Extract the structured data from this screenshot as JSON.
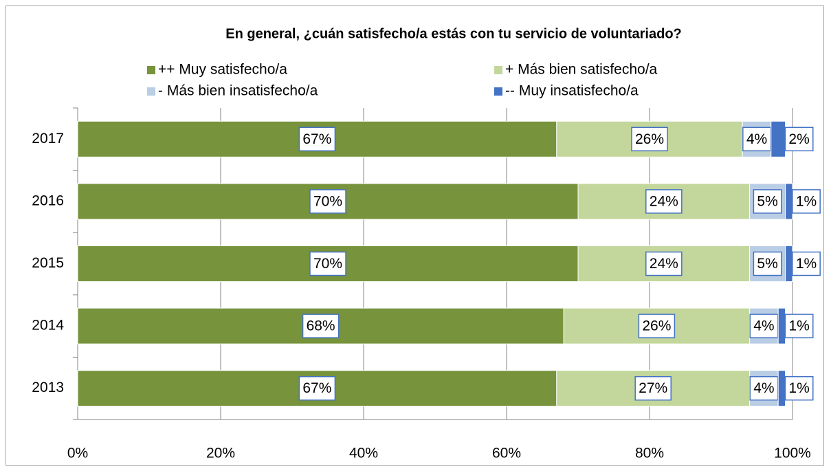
{
  "chart_data": {
    "type": "stacked-barh",
    "title": "En general, ¿cuán satisfecho/a estás con tu servicio de voluntariado?",
    "categories": [
      "2017",
      "2016",
      "2015",
      "2014",
      "2013"
    ],
    "series": [
      {
        "name": "++ Muy satisfecho/a",
        "color": "#77933c",
        "values": [
          67,
          70,
          70,
          68,
          67
        ],
        "value_labels": [
          "67%",
          "70%",
          "70%",
          "68%",
          "67%"
        ]
      },
      {
        "name": "+ Más bien satisfecho/a",
        "color": "#c3d69b",
        "values": [
          26,
          24,
          24,
          26,
          27
        ],
        "value_labels": [
          "26%",
          "24%",
          "24%",
          "26%",
          "27%"
        ]
      },
      {
        "name": "- Más bien insatisfecho/a",
        "color": "#b9cde5",
        "values": [
          4,
          5,
          5,
          4,
          4
        ],
        "value_labels": [
          "4%",
          "5%",
          "5%",
          "4%",
          "4%"
        ]
      },
      {
        "name": "-- Muy insatisfecho/a",
        "color": "#4472c4",
        "values": [
          2,
          1,
          1,
          1,
          1
        ],
        "value_labels": [
          "2%",
          "1%",
          "1%",
          "1%",
          "1%"
        ]
      }
    ],
    "xlim": [
      0,
      100
    ],
    "xticks": [
      {
        "value": 0,
        "label": "0%"
      },
      {
        "value": 20,
        "label": "20%"
      },
      {
        "value": 40,
        "label": "40%"
      },
      {
        "value": 60,
        "label": "60%"
      },
      {
        "value": 80,
        "label": "80%"
      },
      {
        "value": 100,
        "label": "100%"
      }
    ],
    "grid": true,
    "legend": "top"
  }
}
